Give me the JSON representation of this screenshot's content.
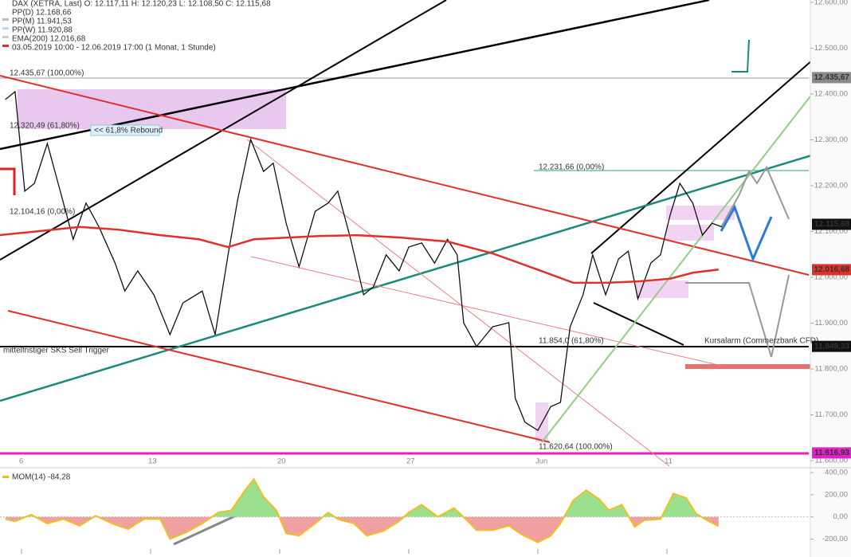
{
  "chart_data": [
    {
      "type": "line",
      "legend": [
        "DAX (XETRA, Last)  O: 12.117,11  H: 12.120,23  L: 12.108,50  C: 12.115,68",
        "PP(D)  12.168,66",
        "PP(M)  11.941,53",
        "PP(W)  11.920,88",
        "EMA(200)  12.016,68",
        "03.05.2019 10:00 - 12.06.2019 17:00  (1 Monat, 1 Stunde)"
      ],
      "xlim": [
        -6.67,
        243.95
      ],
      "xticks": [
        {
          "value": 0,
          "label": "6"
        },
        {
          "value": 40,
          "label": "13"
        },
        {
          "value": 80,
          "label": "20"
        },
        {
          "value": 120,
          "label": "27"
        },
        {
          "value": 160,
          "label": "Jun"
        },
        {
          "value": 200,
          "label": "11"
        }
      ],
      "ylim": [
        11588,
        12605
      ],
      "yticks": [
        {
          "value": 11600,
          "label": "11.600,00"
        },
        {
          "value": 11700,
          "label": "11.700,00"
        },
        {
          "value": 11800,
          "label": "11.800,00"
        },
        {
          "value": 11900,
          "label": "11.900,00"
        },
        {
          "value": 12000,
          "label": "12.000,00"
        },
        {
          "value": 12100,
          "label": "12.100,00"
        },
        {
          "value": 12200,
          "label": "12.200,00"
        },
        {
          "value": 12300,
          "label": "12.300,00"
        },
        {
          "value": 12400,
          "label": "12.400,00"
        },
        {
          "value": 12500,
          "label": "12.500,00"
        },
        {
          "value": 12600,
          "label": "12.600,00"
        }
      ],
      "series": [
        {
          "name": "DAX (XETRA, Last)",
          "color": "#111111",
          "x": [
            -5,
            -2,
            1,
            4,
            8,
            12,
            16,
            20,
            24,
            29,
            32,
            36,
            41,
            46,
            50,
            56,
            60,
            64,
            67,
            71,
            75,
            78,
            82,
            86,
            91,
            95,
            98,
            102,
            106,
            109,
            113,
            117,
            120,
            124,
            128,
            132,
            135,
            137,
            141,
            146,
            151,
            153,
            156,
            160,
            164,
            167,
            170,
            174,
            177,
            181,
            185,
            188,
            191,
            195,
            198,
            201,
            204,
            208,
            211,
            214,
            217
          ],
          "values": [
            12388,
            12405,
            12188,
            12205,
            12292,
            12188,
            12083,
            12162,
            12110,
            12031,
            11970,
            12014,
            11962,
            11875,
            11944,
            11970,
            11875,
            12049,
            12170,
            12301,
            12231,
            12249,
            12118,
            12023,
            12144,
            12162,
            12188,
            12083,
            11962,
            11979,
            12049,
            12014,
            12066,
            12075,
            12031,
            12083,
            12049,
            11901,
            11849,
            11892,
            11901,
            11736,
            11684,
            11666,
            11718,
            11727,
            11892,
            11962,
            12049,
            11962,
            12040,
            12057,
            11953,
            12031,
            12049,
            12136,
            12205,
            12162,
            12092,
            12118,
            12110
          ]
        },
        {
          "name": "EMA(200)",
          "color": "#e0302a",
          "x": [
            -7,
            6,
            18,
            30,
            43,
            55,
            64,
            72,
            92,
            104,
            117,
            132,
            146,
            161,
            171,
            181,
            191,
            201,
            208,
            216
          ],
          "values": [
            12092,
            12101,
            12110,
            12104,
            12092,
            12083,
            12066,
            12083,
            12090,
            12092,
            12087,
            12078,
            12052,
            12014,
            11988,
            11988,
            11991,
            11997,
            12010,
            12017
          ]
        }
      ],
      "price_labels": [
        {
          "value": 12435.67,
          "label": "12.435,67",
          "color": "#8a8a8a"
        },
        {
          "value": 12115.68,
          "label": "12.115,68",
          "color": "#111111"
        },
        {
          "value": 12016.68,
          "label": "12.016,68",
          "color": "#e0302a"
        },
        {
          "value": 11849.33,
          "label": "11.849,33",
          "color": "#111111"
        },
        {
          "value": 11616.93,
          "label": "11.616,93",
          "color": "#e020c8"
        }
      ],
      "annotations": [
        "12.435,67 (100,00%)",
        "12.320,49 (61,80%)",
        "<< 61,8% Rebound",
        "12.104,16 (0,00%)",
        "12.231,66 (0,00%)",
        "11.854,0 (61,80%)",
        "11.620,64 (100,00%)",
        "mittelfristiger SKS Sell Trigger",
        "Kursalarm (Commerzbank CFD)"
      ]
    },
    {
      "type": "area",
      "legend": [
        "MOM(14)  -84,28"
      ],
      "xlim": [
        -6.67,
        243.95
      ],
      "ylim": [
        -290,
        400
      ],
      "yticks": [
        {
          "value": -200,
          "label": "-200,00"
        },
        {
          "value": 0,
          "label": "0,00"
        },
        {
          "value": 200,
          "label": "200,00"
        },
        {
          "value": 400,
          "label": "400,00"
        }
      ],
      "series": [
        {
          "name": "MOM(14)",
          "color": "#f0c020",
          "x": [
            -5,
            -2,
            3,
            8,
            13,
            18,
            23,
            28,
            33,
            38,
            43,
            46,
            51,
            56,
            61,
            65,
            69,
            72,
            75,
            79,
            82,
            86,
            91,
            95,
            98,
            103,
            107,
            112,
            117,
            120,
            124,
            129,
            134,
            138,
            141,
            146,
            151,
            155,
            160,
            164,
            167,
            171,
            175,
            179,
            182,
            186,
            190,
            193,
            198,
            202,
            206,
            209,
            213,
            216
          ],
          "values": [
            -20,
            -40,
            20,
            -60,
            -20,
            -80,
            10,
            -60,
            -110,
            -20,
            -20,
            -200,
            -140,
            -60,
            40,
            60,
            230,
            340,
            180,
            60,
            -150,
            -170,
            -60,
            40,
            -20,
            -60,
            -170,
            -130,
            -40,
            40,
            110,
            0,
            80,
            -30,
            -120,
            -120,
            -80,
            -160,
            -230,
            -170,
            -60,
            150,
            240,
            160,
            60,
            110,
            -90,
            -30,
            -20,
            210,
            170,
            30,
            -40,
            -84.28
          ]
        }
      ]
    }
  ]
}
